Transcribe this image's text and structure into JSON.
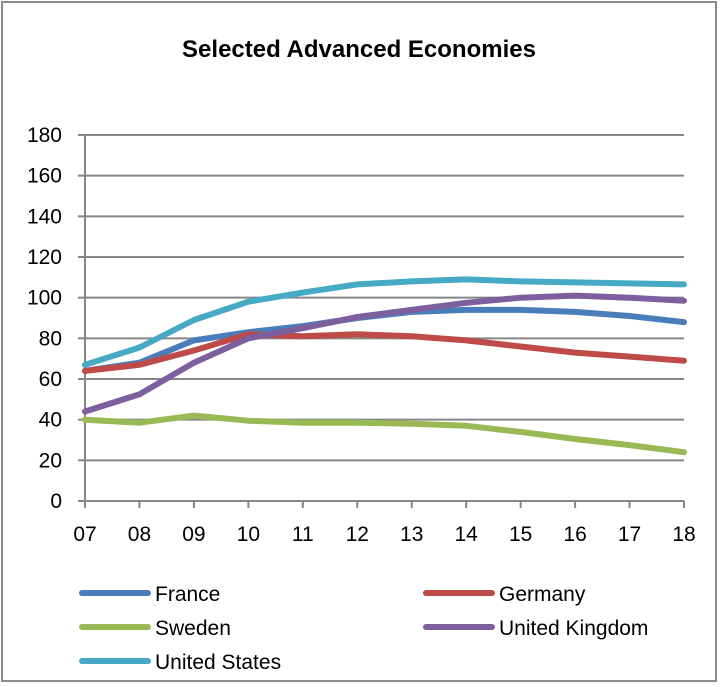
{
  "chart_data": {
    "type": "line",
    "title": "Selected Advanced Economies",
    "xlabel": "",
    "ylabel": "",
    "categories": [
      "07",
      "08",
      "09",
      "10",
      "11",
      "12",
      "13",
      "14",
      "15",
      "16",
      "17",
      "18"
    ],
    "yticks": [
      0,
      20,
      40,
      60,
      80,
      100,
      120,
      140,
      160,
      180
    ],
    "ylim": [
      0,
      180
    ],
    "grid": true,
    "legend_position": "bottom",
    "series": [
      {
        "name": "France",
        "color": "#4a7ebb",
        "values": [
          64,
          68,
          79,
          83,
          86,
          90,
          93,
          94,
          94,
          93,
          91,
          88
        ]
      },
      {
        "name": "Germany",
        "color": "#be4b48",
        "values": [
          64,
          67,
          74,
          82,
          81,
          82,
          81,
          79,
          76,
          73,
          71,
          69
        ]
      },
      {
        "name": "Sweden",
        "color": "#98b954",
        "values": [
          40,
          38.5,
          42,
          39.5,
          38.5,
          38.5,
          38,
          37,
          34,
          30.5,
          27.5,
          24
        ]
      },
      {
        "name": "United Kingdom",
        "color": "#7d5fa0",
        "values": [
          44,
          52.5,
          68,
          80,
          85,
          90.5,
          94,
          97.5,
          100,
          101,
          100,
          98.5
        ]
      },
      {
        "name": "United States",
        "color": "#46aac5",
        "values": [
          67,
          75.5,
          89,
          98,
          102.5,
          106.5,
          108,
          109,
          108,
          107.5,
          107,
          106.5
        ]
      }
    ]
  }
}
